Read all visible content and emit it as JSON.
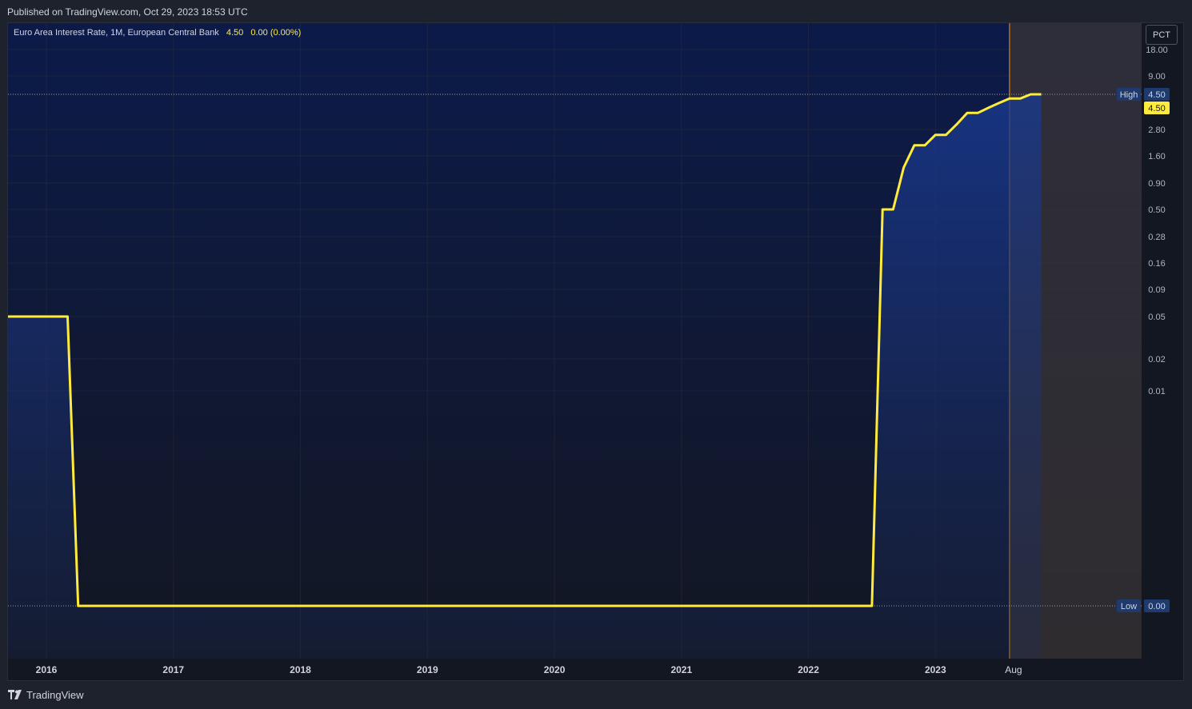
{
  "header": {
    "published": "Published on TradingView.com, Oct 29, 2023 18:53 UTC"
  },
  "legend": {
    "title": "Euro Area Interest Rate, 1M, European Central Bank",
    "last": "4.50",
    "change": "0.00 (0.00%)"
  },
  "scale_button": "PCT",
  "footer": {
    "brand": "TradingView"
  },
  "colors": {
    "line": "#ffeb3b",
    "background": "#131722",
    "fill_top": "#1a3a8f",
    "marker": "#ff9800",
    "label_bg": "#1e3a6e"
  },
  "chart_data": {
    "type": "area",
    "title": "Euro Area Interest Rate, 1M, European Central Bank",
    "yscale": "log",
    "ylim": [
      0,
      18
    ],
    "y_ticks": [
      "18.00",
      "9.00",
      "4.50",
      "2.80",
      "1.60",
      "0.90",
      "0.50",
      "0.28",
      "0.16",
      "0.09",
      "0.05",
      "0.02",
      "0.01",
      "0.00"
    ],
    "x_ticks": [
      "2016",
      "2017",
      "2018",
      "2019",
      "2020",
      "2021",
      "2022",
      "2023",
      "Aug"
    ],
    "high_label": "High",
    "high_value": "4.50",
    "low_label": "Low",
    "low_value": "0.00",
    "current_value": "4.50",
    "marker_date": "2023-08",
    "series": [
      {
        "points": [
          [
            "2015-12",
            0.05
          ],
          [
            "2016-01",
            0.05
          ],
          [
            "2016-02",
            0.05
          ],
          [
            "2016-03",
            0.05
          ],
          [
            "2016-04",
            0.0
          ],
          [
            "2022-06",
            0.0
          ],
          [
            "2022-07",
            0.0
          ],
          [
            "2022-08",
            0.5
          ],
          [
            "2022-09",
            0.5
          ],
          [
            "2022-10",
            1.25
          ],
          [
            "2022-11",
            2.0
          ],
          [
            "2022-12",
            2.0
          ],
          [
            "2023-01",
            2.5
          ],
          [
            "2023-02",
            2.5
          ],
          [
            "2023-03",
            3.0
          ],
          [
            "2023-04",
            3.5
          ],
          [
            "2023-05",
            3.5
          ],
          [
            "2023-06",
            3.75
          ],
          [
            "2023-07",
            4.0
          ],
          [
            "2023-08",
            4.25
          ],
          [
            "2023-09",
            4.25
          ],
          [
            "2023-10",
            4.5
          ],
          [
            "2023-11",
            4.5
          ]
        ]
      }
    ]
  }
}
